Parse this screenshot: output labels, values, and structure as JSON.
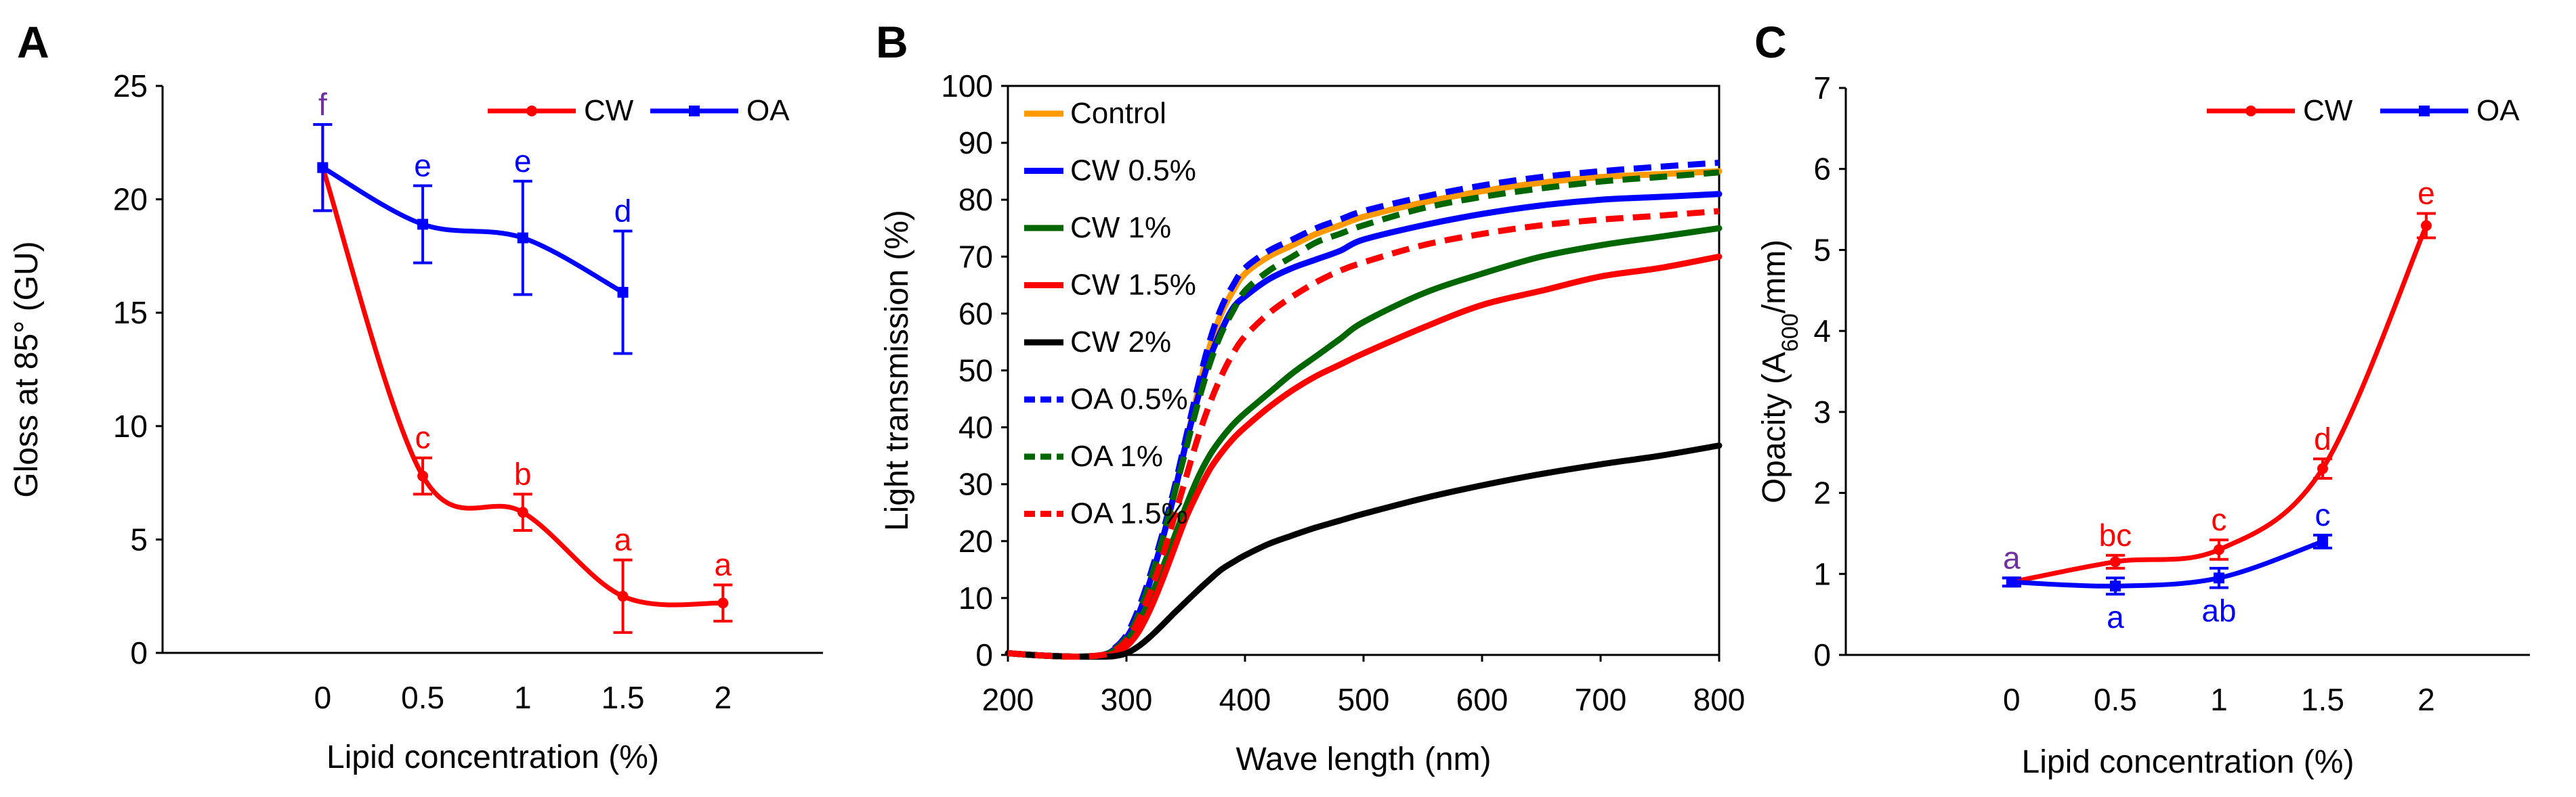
{
  "chart_data": [
    {
      "panel": "A",
      "type": "line",
      "xlabel": "Lipid concentration (%)",
      "ylabel": "Gloss at 85° (GU)",
      "categories": [
        "0",
        "0.5",
        "1",
        "1.5",
        "2"
      ],
      "x": [
        0,
        0.5,
        1,
        1.5,
        2
      ],
      "xlim": [
        -0.8,
        2.5
      ],
      "ylim": [
        0,
        25
      ],
      "yticks": [
        0,
        5,
        10,
        15,
        20,
        25
      ],
      "yticklabels": [
        "0",
        "5",
        "10",
        "15",
        "20",
        "25"
      ],
      "legend": "top-right",
      "series": [
        {
          "name": "CW",
          "color": "#ff0000",
          "x": [
            0,
            0.5,
            1,
            1.5,
            2
          ],
          "values": [
            21.4,
            7.8,
            6.2,
            2.5,
            2.2
          ],
          "errors": [
            1.9,
            0.8,
            0.8,
            1.6,
            0.8
          ],
          "letters": [
            "f",
            "c",
            "b",
            "a",
            "a"
          ],
          "letter_colors": [
            "#7030a0",
            "#ff0000",
            "#ff0000",
            "#ff0000",
            "#ff0000"
          ]
        },
        {
          "name": "OA",
          "color": "#0000ff",
          "x": [
            0,
            0.5,
            1,
            1.5
          ],
          "values": [
            21.4,
            18.9,
            18.3,
            15.9
          ],
          "errors": [
            1.9,
            1.7,
            2.5,
            2.7
          ],
          "letters": [
            "",
            "e",
            "e",
            "d"
          ],
          "letter_colors": [
            "#0000ff",
            "#0000ff",
            "#0000ff",
            "#0000ff"
          ]
        }
      ]
    },
    {
      "panel": "B",
      "type": "line",
      "xlabel": "Wave length (nm)",
      "ylabel": "Light transmission (%)",
      "xlim": [
        200,
        800
      ],
      "ylim": [
        0,
        100
      ],
      "xticks": [
        200,
        300,
        400,
        500,
        600,
        700,
        800
      ],
      "xticklabels": [
        "200",
        "300",
        "400",
        "500",
        "600",
        "700",
        "800"
      ],
      "yticks": [
        0,
        10,
        20,
        30,
        40,
        50,
        60,
        70,
        80,
        90,
        100
      ],
      "yticklabels": [
        "0",
        "10",
        "20",
        "30",
        "40",
        "50",
        "60",
        "70",
        "80",
        "90",
        "100"
      ],
      "legend": "top-left",
      "x": [
        200,
        220,
        240,
        260,
        280,
        290,
        300,
        310,
        320,
        330,
        340,
        350,
        360,
        370,
        380,
        390,
        400,
        420,
        440,
        460,
        480,
        500,
        550,
        600,
        650,
        700,
        750,
        800
      ],
      "series": [
        {
          "name": "Control",
          "color": "#ff9900",
          "dash": false,
          "values": [
            0.3,
            0,
            -0.2,
            -0.3,
            0,
            1,
            3,
            7,
            13,
            20,
            28,
            37,
            46,
            54,
            60,
            64,
            67,
            70,
            72,
            74,
            75.5,
            77,
            79.5,
            81.5,
            83,
            84,
            84.5,
            85
          ]
        },
        {
          "name": "CW 0.5%",
          "color": "#0000ff",
          "dash": false,
          "values": [
            0.3,
            0,
            -0.2,
            -0.3,
            0,
            1,
            3,
            7,
            13,
            20,
            28,
            37,
            45,
            52,
            57,
            61,
            63,
            66,
            68,
            69.5,
            71,
            73,
            75.5,
            77.5,
            79,
            80,
            80.5,
            81
          ]
        },
        {
          "name": "CW 1%",
          "color": "#006600",
          "dash": false,
          "values": [
            0.3,
            0,
            -0.2,
            -0.3,
            0,
            0.8,
            2.5,
            5.5,
            10,
            15,
            20.5,
            26,
            31,
            35,
            38,
            40.5,
            42.5,
            46,
            49.5,
            52.5,
            55.5,
            58.5,
            63.5,
            67,
            70,
            72,
            73.5,
            75
          ]
        },
        {
          "name": "CW 1.5%",
          "color": "#ff0000",
          "dash": false,
          "values": [
            0.3,
            0,
            -0.2,
            -0.3,
            -0.2,
            0.3,
            1.5,
            4,
            8,
            13,
            18.5,
            24,
            28.5,
            32.5,
            35.5,
            38,
            40,
            43.5,
            46.5,
            49,
            51,
            53,
            57.5,
            61.5,
            64,
            66.5,
            68,
            70
          ]
        },
        {
          "name": "CW 2%",
          "color": "#000000",
          "dash": false,
          "values": [
            0.3,
            0,
            -0.2,
            -0.3,
            -0.3,
            -0.2,
            0.3,
            1.5,
            3.2,
            5.2,
            7.3,
            9.3,
            11.3,
            13.2,
            15,
            16.3,
            17.5,
            19.5,
            21,
            22.4,
            23.6,
            24.8,
            27.5,
            29.8,
            31.8,
            33.5,
            35,
            36.8
          ]
        },
        {
          "name": "OA 0.5%",
          "color": "#0000ff",
          "dash": true,
          "values": [
            0.3,
            0,
            -0.2,
            -0.3,
            0,
            1.2,
            3.5,
            8,
            14,
            21,
            29,
            38,
            47,
            55,
            61,
            65,
            68,
            71,
            73,
            75,
            76.5,
            78,
            80.5,
            82.5,
            84,
            85,
            85.8,
            86.5
          ]
        },
        {
          "name": "OA 1%",
          "color": "#006600",
          "dash": true,
          "values": [
            0.3,
            0,
            -0.2,
            -0.3,
            0,
            1,
            3,
            7,
            13,
            20,
            28,
            36,
            44,
            51,
            56.5,
            60.5,
            64,
            67.5,
            70,
            72.5,
            74,
            75.5,
            78.5,
            80.5,
            82,
            83.2,
            84,
            84.8
          ]
        },
        {
          "name": "OA 1.5%",
          "color": "#ff0000",
          "dash": true,
          "values": [
            0.3,
            0,
            -0.2,
            -0.3,
            0,
            0.8,
            2.5,
            6,
            11,
            17,
            24,
            31,
            38,
            44,
            49,
            53,
            56,
            60,
            63,
            65.5,
            67.5,
            69,
            72,
            74,
            75.5,
            76.5,
            77.2,
            78
          ]
        }
      ]
    },
    {
      "panel": "C",
      "type": "line",
      "xlabel": "Lipid concentration (%)",
      "ylabel_prefix": "Opacity (A",
      "ylabel_sub": "600",
      "ylabel_suffix": "/mm)",
      "categories": [
        "0",
        "0.5",
        "1",
        "1.5",
        "2"
      ],
      "x": [
        0,
        0.5,
        1,
        1.5,
        2
      ],
      "xlim": [
        -0.8,
        2.5
      ],
      "ylim": [
        0,
        7
      ],
      "yticks": [
        0,
        1,
        2,
        3,
        4,
        5,
        6,
        7
      ],
      "yticklabels": [
        "0",
        "1",
        "2",
        "3",
        "4",
        "5",
        "6",
        "7"
      ],
      "legend": "top-right",
      "series": [
        {
          "name": "CW",
          "color": "#ff0000",
          "x": [
            0,
            0.5,
            1,
            1.5,
            2
          ],
          "values": [
            0.9,
            1.15,
            1.3,
            2.3,
            5.3
          ],
          "errors": [
            0.05,
            0.08,
            0.12,
            0.12,
            0.15
          ],
          "letters": [
            "a",
            "bc",
            "c",
            "d",
            "e"
          ],
          "letter_colors": [
            "#7030a0",
            "#ff0000",
            "#ff0000",
            "#ff0000",
            "#ff0000"
          ],
          "letter_pos": [
            "above",
            "above",
            "above",
            "above",
            "above"
          ]
        },
        {
          "name": "OA",
          "color": "#0000ff",
          "x": [
            0,
            0.5,
            1,
            1.5
          ],
          "values": [
            0.9,
            0.85,
            0.95,
            1.4
          ],
          "errors": [
            0.05,
            0.1,
            0.12,
            0.08
          ],
          "letters": [
            "",
            "a",
            "ab",
            "c"
          ],
          "letter_colors": [
            "#0000ff",
            "#0000ff",
            "#0000ff",
            "#0000ff"
          ],
          "letter_pos": [
            "below",
            "below",
            "below",
            "above"
          ]
        }
      ]
    }
  ]
}
